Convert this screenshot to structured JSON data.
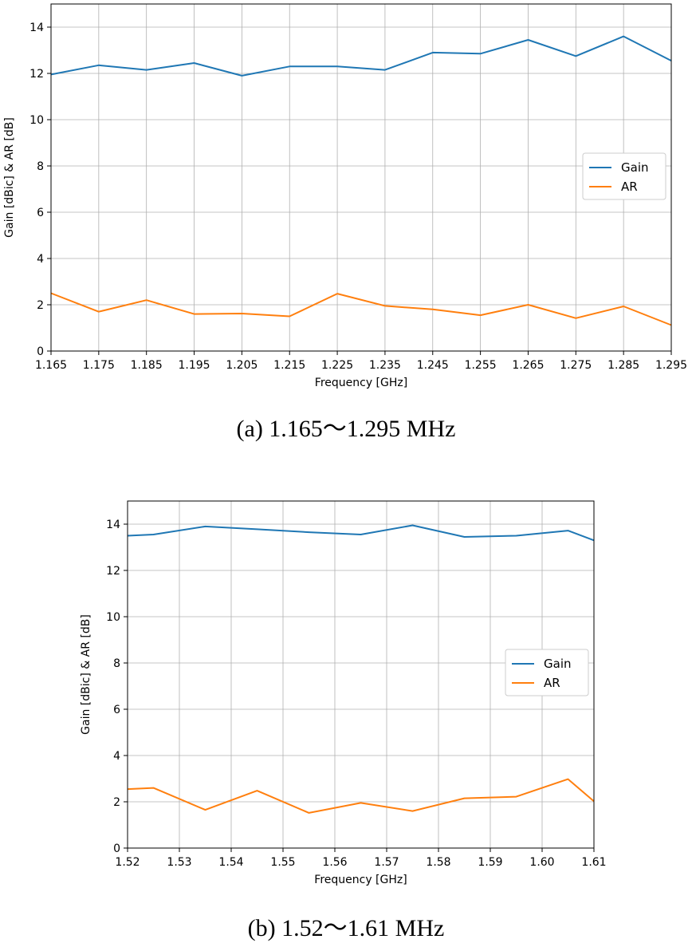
{
  "chart_data": [
    {
      "type": "line",
      "caption": "(a)  1.165～1.295  MHz",
      "xlabel": "Frequency [GHz]",
      "ylabel": "Gain [dBic] & AR [dB]",
      "xlim": [
        1.165,
        1.295
      ],
      "ylim": [
        0,
        15
      ],
      "x_ticks": [
        "1.165",
        "1.175",
        "1.185",
        "1.195",
        "1.205",
        "1.215",
        "1.225",
        "1.235",
        "1.245",
        "1.255",
        "1.265",
        "1.275",
        "1.285",
        "1.295"
      ],
      "y_ticks": [
        "0",
        "2",
        "4",
        "6",
        "8",
        "10",
        "12",
        "14"
      ],
      "grid": true,
      "legend_position": "center-right",
      "x": [
        1.165,
        1.175,
        1.185,
        1.195,
        1.205,
        1.215,
        1.225,
        1.235,
        1.245,
        1.255,
        1.265,
        1.275,
        1.285,
        1.295
      ],
      "series": [
        {
          "name": "Gain",
          "color": "#1f77b4",
          "values": [
            11.95,
            12.35,
            12.15,
            12.45,
            11.9,
            12.3,
            12.3,
            12.15,
            12.9,
            12.85,
            13.45,
            12.75,
            13.6,
            12.55
          ]
        },
        {
          "name": "AR",
          "color": "#ff7f0e",
          "values": [
            2.5,
            1.7,
            2.2,
            1.6,
            1.62,
            1.5,
            2.48,
            1.95,
            1.8,
            1.55,
            2.0,
            1.42,
            1.93,
            1.12
          ]
        }
      ]
    },
    {
      "type": "line",
      "caption": "(b)  1.52～1.61  MHz",
      "xlabel": "Frequency [GHz]",
      "ylabel": "Gain [dBic] & AR [dB]",
      "xlim": [
        1.52,
        1.61
      ],
      "ylim": [
        0,
        15
      ],
      "x_ticks": [
        "1.52",
        "1.53",
        "1.54",
        "1.55",
        "1.56",
        "1.57",
        "1.58",
        "1.59",
        "1.60",
        "1.61"
      ],
      "y_ticks": [
        "0",
        "2",
        "4",
        "6",
        "8",
        "10",
        "12",
        "14"
      ],
      "grid": true,
      "legend_position": "center-right",
      "x": [
        1.52,
        1.525,
        1.535,
        1.545,
        1.555,
        1.565,
        1.575,
        1.585,
        1.595,
        1.605,
        1.61
      ],
      "series": [
        {
          "name": "Gain",
          "color": "#1f77b4",
          "values": [
            13.5,
            13.55,
            13.9,
            13.78,
            13.65,
            13.55,
            13.95,
            13.45,
            13.5,
            13.72,
            13.3
          ]
        },
        {
          "name": "AR",
          "color": "#ff7f0e",
          "values": [
            2.55,
            2.6,
            1.65,
            2.48,
            1.52,
            1.95,
            1.6,
            2.15,
            2.22,
            2.98,
            2.02
          ]
        }
      ]
    }
  ]
}
